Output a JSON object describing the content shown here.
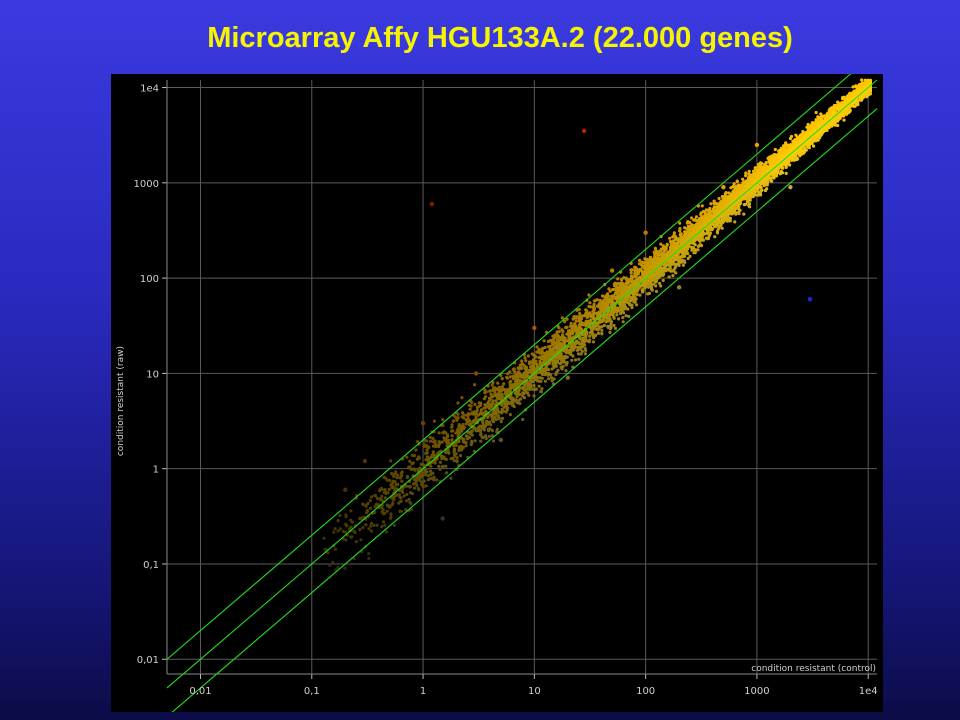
{
  "title": "Microarray Affy HGU133A.2 (22.000 genes)",
  "colors": {
    "background_top": "#3a3ae0",
    "background_bottom": "#0c0c48",
    "title": "#f5f500",
    "plot_background": "#000000",
    "grid": "#5a5a5a",
    "reference_lines": "#22dd22",
    "up_regulated": "#e02000",
    "mid_expression": "#ffd000",
    "down_regulated": "#2030ff"
  },
  "chart_data": {
    "type": "scatter",
    "scale": "log-log",
    "xlabel": "condition resistant (control)",
    "ylabel": "condition resistant (raw)",
    "xlim": [
      0.005,
      12000
    ],
    "ylim": [
      0.007,
      12000
    ],
    "x_ticks": [
      {
        "value": 0.01,
        "label": "0,01"
      },
      {
        "value": 0.1,
        "label": "0,1"
      },
      {
        "value": 1,
        "label": "1"
      },
      {
        "value": 10,
        "label": "10"
      },
      {
        "value": 100,
        "label": "100"
      },
      {
        "value": 1000,
        "label": "1000"
      },
      {
        "value": 10000,
        "label": "1e4"
      }
    ],
    "y_ticks": [
      {
        "value": 0.01,
        "label": "0,01"
      },
      {
        "value": 0.1,
        "label": "0,1"
      },
      {
        "value": 1,
        "label": "1"
      },
      {
        "value": 10,
        "label": "10"
      },
      {
        "value": 100,
        "label": "100"
      },
      {
        "value": 1000,
        "label": "1000"
      },
      {
        "value": 10000,
        "label": "1e4"
      }
    ],
    "grid": true,
    "reference_lines": [
      {
        "fold": 2,
        "description": "upper bound y = 2x"
      },
      {
        "fold": 1,
        "description": "diagonal y = x"
      },
      {
        "fold": 0.5,
        "description": "lower bound y = x/2"
      }
    ],
    "point_count": 22000,
    "gene_points_sample": [
      {
        "x": 0.2,
        "y": 0.6
      },
      {
        "x": 0.3,
        "y": 1.2
      },
      {
        "x": 0.5,
        "y": 0.4
      },
      {
        "x": 1.0,
        "y": 3.0
      },
      {
        "x": 1.5,
        "y": 0.3
      },
      {
        "x": 3,
        "y": 10
      },
      {
        "x": 5,
        "y": 2
      },
      {
        "x": 10,
        "y": 30
      },
      {
        "x": 20,
        "y": 9
      },
      {
        "x": 50,
        "y": 120
      },
      {
        "x": 100,
        "y": 300
      },
      {
        "x": 200,
        "y": 80
      },
      {
        "x": 500,
        "y": 900
      },
      {
        "x": 1000,
        "y": 2500
      },
      {
        "x": 2000,
        "y": 900
      },
      {
        "x": 5000,
        "y": 6000
      },
      {
        "x": 10000,
        "y": 9500
      },
      {
        "x": 28,
        "y": 3500
      },
      {
        "x": 1.2,
        "y": 600
      },
      {
        "x": 3000,
        "y": 60
      }
    ]
  }
}
